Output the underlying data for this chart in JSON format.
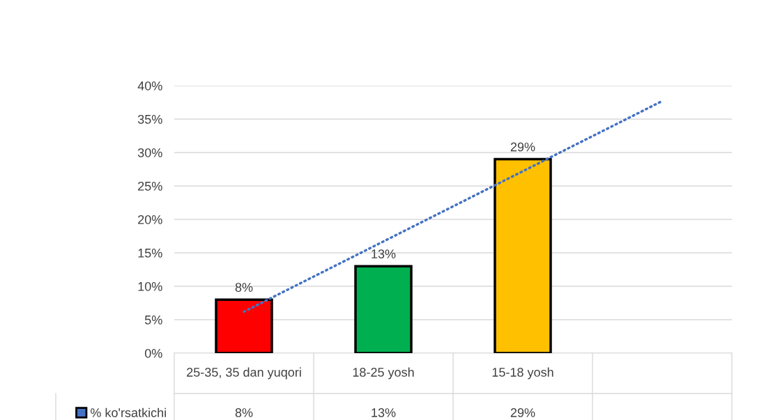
{
  "chart_data": {
    "type": "bar",
    "categories": [
      "25-35, 35 dan yuqori",
      "18-25 yosh",
      "15-18 yosh",
      null
    ],
    "series": [
      {
        "name": "% ko'rsatkichi",
        "color": "#4472c4",
        "colors": [
          "#ff0000",
          "#00b050",
          "#ffc000",
          "#ffc000"
        ],
        "values": [
          8,
          13,
          29,
          null
        ],
        "value_labels": [
          "8%",
          "13%",
          "29%",
          null
        ]
      },
      {
        "type": "line",
        "color": "#4472c4",
        "line_style": "dotted",
        "values": [
          6.2,
          16.7,
          27.2,
          37.7
        ]
      }
    ],
    "ylim": [
      0,
      40
    ],
    "yticks": [
      {
        "value": 0,
        "label": "0%"
      },
      {
        "value": 5,
        "label": "5%"
      },
      {
        "value": 10,
        "label": "10%"
      },
      {
        "value": 15,
        "label": "15%"
      },
      {
        "value": 20,
        "label": "20%"
      },
      {
        "value": 25,
        "label": "25%"
      },
      {
        "value": 30,
        "label": "30%"
      },
      {
        "value": 35,
        "label": "35%"
      },
      {
        "value": 40,
        "label": "40%"
      }
    ],
    "grid": "y",
    "legend": "bottom left"
  }
}
